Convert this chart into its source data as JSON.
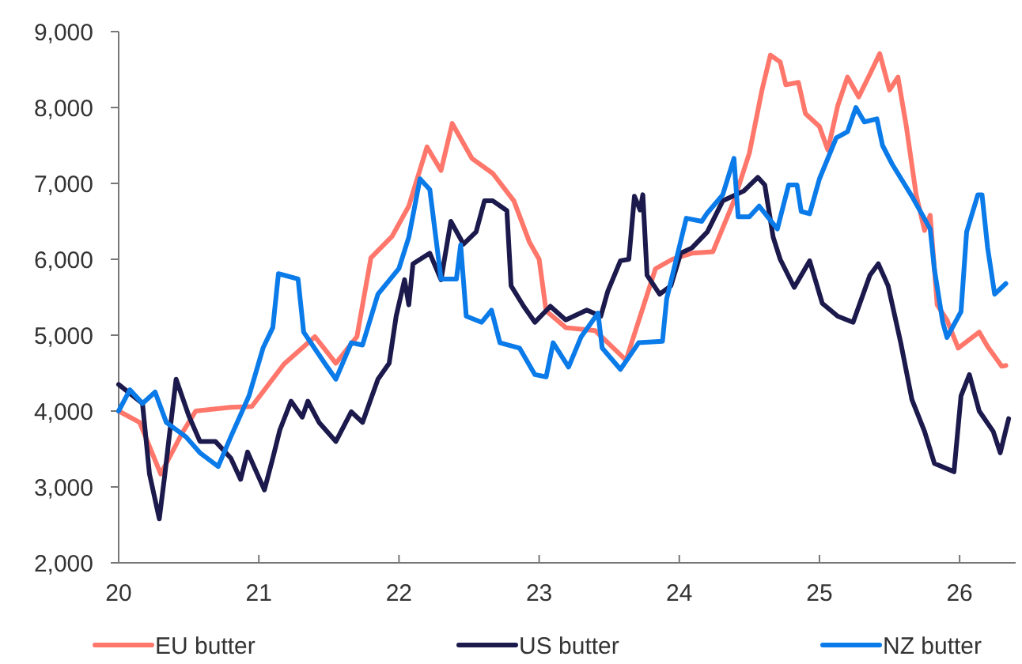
{
  "chart_data": {
    "type": "line",
    "xlim": [
      20,
      26.4
    ],
    "xticks": [
      20,
      21,
      22,
      23,
      24,
      25,
      26
    ],
    "ylim": [
      2000,
      9000
    ],
    "yticks": [
      {
        "value": 2000,
        "label": "2,000"
      },
      {
        "value": 3000,
        "label": "3,000"
      },
      {
        "value": 4000,
        "label": "4,000"
      },
      {
        "value": 5000,
        "label": "5,000"
      },
      {
        "value": 6000,
        "label": "6,000"
      },
      {
        "value": 7000,
        "label": "7,000"
      },
      {
        "value": 8000,
        "label": "8,000"
      },
      {
        "value": 9000,
        "label": "9,000"
      }
    ],
    "grid": false,
    "legend": "bottom",
    "marker": "none",
    "line_style": "solid",
    "series": [
      {
        "name": "EU butter",
        "color": "#ff766b",
        "x": [
          20,
          20.15,
          20.3,
          20.45,
          20.55,
          20.8,
          20.95,
          21.18,
          21.4,
          21.55,
          21.7,
          21.8,
          21.95,
          22.07,
          22.2,
          22.3,
          22.38,
          22.52,
          22.67,
          22.82,
          22.93,
          23.0,
          23.05,
          23.19,
          23.4,
          23.62,
          23.83,
          23.95,
          24.09,
          24.24,
          24.39,
          24.5,
          24.59,
          24.65,
          24.72,
          24.76,
          24.85,
          24.9,
          25.0,
          25.06,
          25.13,
          25.2,
          25.28,
          25.36,
          25.43,
          25.5,
          25.56,
          25.62,
          25.69,
          25.75,
          25.79,
          25.84,
          25.91,
          25.99,
          26.14,
          26.2,
          26.3,
          26.33
        ],
        "values": [
          4000,
          3850,
          3170,
          3700,
          4000,
          4050,
          4060,
          4620,
          4980,
          4630,
          4980,
          6020,
          6300,
          6700,
          7480,
          7170,
          7790,
          7330,
          7130,
          6770,
          6230,
          6000,
          5320,
          5100,
          5060,
          4670,
          5875,
          6000,
          6080,
          6100,
          6770,
          7400,
          8230,
          8690,
          8600,
          8300,
          8330,
          7920,
          7750,
          7440,
          8020,
          8400,
          8140,
          8440,
          8710,
          8230,
          8400,
          7750,
          6850,
          6380,
          6580,
          5400,
          5200,
          4830,
          5040,
          4850,
          4590,
          4600
        ]
      },
      {
        "name": "US butter",
        "color": "#1c1a4c",
        "x": [
          20,
          20.17,
          20.22,
          20.29,
          20.33,
          20.36,
          20.41,
          20.5,
          20.58,
          20.69,
          20.8,
          20.87,
          20.92,
          21.04,
          21.1,
          21.15,
          21.23,
          21.31,
          21.35,
          21.43,
          21.55,
          21.66,
          21.74,
          21.85,
          21.93,
          21.98,
          22.04,
          22.07,
          22.1,
          22.22,
          22.3,
          22.37,
          22.46,
          22.55,
          22.61,
          22.67,
          22.77,
          22.8,
          22.89,
          22.97,
          23.08,
          23.19,
          23.34,
          23.44,
          23.49,
          23.58,
          23.64,
          23.68,
          23.72,
          23.74,
          23.77,
          23.86,
          23.94,
          24.01,
          24.09,
          24.2,
          24.31,
          24.46,
          24.56,
          24.61,
          24.67,
          24.72,
          24.82,
          24.93,
          25.02,
          25.13,
          25.24,
          25.36,
          25.42,
          25.49,
          25.58,
          25.66,
          25.75,
          25.82,
          25.96,
          26.01,
          26.07,
          26.14,
          26.24,
          26.29,
          26.35
        ],
        "values": [
          4350,
          4100,
          3170,
          2580,
          3170,
          3650,
          4420,
          3940,
          3600,
          3600,
          3380,
          3100,
          3460,
          2960,
          3380,
          3750,
          4130,
          3920,
          4130,
          3850,
          3600,
          3990,
          3850,
          4420,
          4630,
          5250,
          5730,
          5400,
          5940,
          6080,
          5730,
          6500,
          6200,
          6360,
          6770,
          6770,
          6640,
          5650,
          5380,
          5170,
          5380,
          5200,
          5330,
          5250,
          5580,
          5980,
          6000,
          6830,
          6650,
          6850,
          5790,
          5540,
          5650,
          6080,
          6150,
          6360,
          6770,
          6900,
          7080,
          6980,
          6290,
          6000,
          5630,
          5980,
          5420,
          5250,
          5170,
          5790,
          5940,
          5650,
          4900,
          4150,
          3730,
          3310,
          3200,
          4200,
          4480,
          4000,
          3730,
          3450,
          3900
        ]
      },
      {
        "name": "NZ butter",
        "color": "#0a7be8",
        "x": [
          20,
          20.08,
          20.17,
          20.26,
          20.34,
          20.48,
          20.58,
          20.71,
          20.8,
          20.93,
          21.03,
          21.1,
          21.14,
          21.28,
          21.32,
          21.47,
          21.55,
          21.66,
          21.74,
          21.85,
          22.0,
          22.07,
          22.15,
          22.22,
          22.3,
          22.41,
          22.44,
          22.48,
          22.59,
          22.66,
          22.72,
          22.86,
          22.97,
          23.05,
          23.1,
          23.21,
          23.3,
          23.42,
          23.45,
          23.58,
          23.71,
          23.88,
          23.91,
          24.05,
          24.16,
          24.2,
          24.31,
          24.39,
          24.42,
          24.5,
          24.57,
          24.7,
          24.78,
          24.84,
          24.87,
          24.93,
          25.0,
          25.12,
          25.2,
          25.26,
          25.32,
          25.41,
          25.45,
          25.52,
          25.66,
          25.79,
          25.82,
          25.88,
          25.91,
          26.01,
          26.05,
          26.13,
          26.16,
          26.2,
          26.25,
          26.33
        ],
        "values": [
          4000,
          4280,
          4100,
          4250,
          3850,
          3660,
          3450,
          3270,
          3660,
          4200,
          4830,
          5100,
          5810,
          5740,
          5040,
          4630,
          4420,
          4900,
          4870,
          5540,
          5880,
          6290,
          7060,
          6920,
          5740,
          5740,
          6190,
          5250,
          5170,
          5330,
          4900,
          4830,
          4480,
          4450,
          4900,
          4580,
          4980,
          5290,
          4830,
          4550,
          4900,
          4920,
          5480,
          6540,
          6500,
          6610,
          6850,
          7330,
          6560,
          6560,
          6700,
          6400,
          6980,
          6980,
          6630,
          6600,
          7060,
          7600,
          7680,
          8000,
          7810,
          7850,
          7500,
          7250,
          6830,
          6400,
          5870,
          5170,
          4970,
          5310,
          6360,
          6850,
          6850,
          6150,
          5540,
          5680
        ]
      }
    ]
  }
}
